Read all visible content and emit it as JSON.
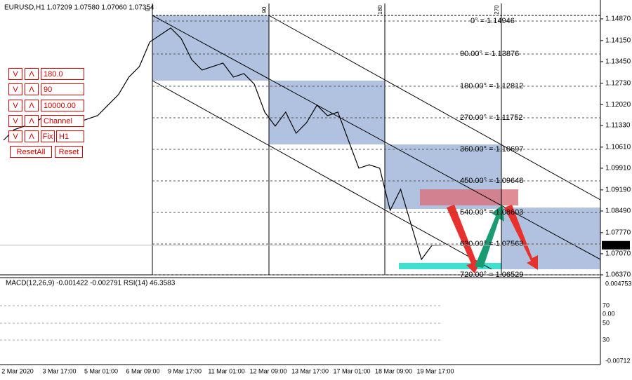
{
  "header": "EURUSD,H1  1.07209 1.07580 1.07060 1.07354",
  "panel_buttons": [
    {
      "down": "V",
      "up": "Λ",
      "field": "180.0"
    },
    {
      "down": "V",
      "up": "Λ",
      "field": "90"
    },
    {
      "down": "V",
      "up": "Λ",
      "field": "10000.00"
    },
    {
      "down": "V",
      "up": "Λ",
      "field": "Channel"
    },
    {
      "down": "V",
      "up": "Λ",
      "field": "H1",
      "extra": "Fix"
    }
  ],
  "reset_buttons": [
    "ResetAll",
    "Reset"
  ],
  "fan_marks": [
    "0",
    "90",
    "180",
    "270"
  ],
  "gann_levels": [
    "0° = 1.14946",
    "90.00° = 1.13876",
    "180.00° = 1.12812",
    "270.00° = 1.11752",
    "360.00° = 1.10697",
    "450.00° = 1.09648",
    "540.00° = 1.08603",
    "630.00° = 1.07563",
    "720.00° = 1.06529"
  ],
  "chart_data": {
    "type": "line",
    "color": "#000000",
    "values": [
      1.10841,
      1.1119,
      1.11307,
      1.11423,
      1.11656,
      1.1154,
      1.11307,
      1.11423,
      1.1154,
      1.11656,
      1.12006,
      1.12355,
      1.12937,
      1.13286,
      1.14101,
      1.14334,
      1.14567,
      1.14218,
      1.13519,
      1.1317,
      1.13286,
      1.13403,
      1.12937,
      1.13054,
      1.12704,
      1.11773,
      1.11307,
      1.11773,
      1.11074,
      1.11423,
      1.12006,
      1.11656,
      1.11773,
      1.10841,
      1.0991,
      1.10026,
      1.0991,
      1.08512,
      1.09211,
      1.08047,
      1.06882,
      1.07348,
      1.07354
    ],
    "ylim": [
      1.0637,
      1.1538
    ],
    "yticks": [
      {
        "value": 1.1487,
        "label": "1.14870"
      },
      {
        "value": 1.1415,
        "label": "1.14150"
      },
      {
        "value": 1.1345,
        "label": "1.13450"
      },
      {
        "value": 1.1273,
        "label": "1.12730"
      },
      {
        "value": 1.1202,
        "label": "1.12020"
      },
      {
        "value": 1.1133,
        "label": "1.11330"
      },
      {
        "value": 1.1061,
        "label": "1.10610"
      },
      {
        "value": 1.0991,
        "label": "1.09910"
      },
      {
        "value": 1.0919,
        "label": "1.09190"
      },
      {
        "value": 1.0849,
        "label": "1.08490"
      },
      {
        "value": 1.0777,
        "label": "1.07770"
      },
      {
        "value": 1.0707,
        "label": "1.07070"
      },
      {
        "value": 1.0637,
        "label": "1.06370"
      }
    ],
    "current_price": 1.07354
  },
  "macd": {
    "label": "MACD(12,26,9) -0.001422 -0.002791 RSI(14) 46.3583",
    "axis_labels": [
      "0.004753",
      "70",
      "0.00",
      "50",
      "30",
      "-0.00712"
    ]
  },
  "x_labels": [
    "2 Mar 2020",
    "3 Mar 17:00",
    "5 Mar 01:00",
    "6 Mar 09:00",
    "9 Mar 17:00",
    "11 Mar 01:00",
    "12 Mar 09:00",
    "13 Mar 17:00",
    "17 Mar 01:00",
    "18 Mar 09:00",
    "19 Mar 17:00"
  ]
}
